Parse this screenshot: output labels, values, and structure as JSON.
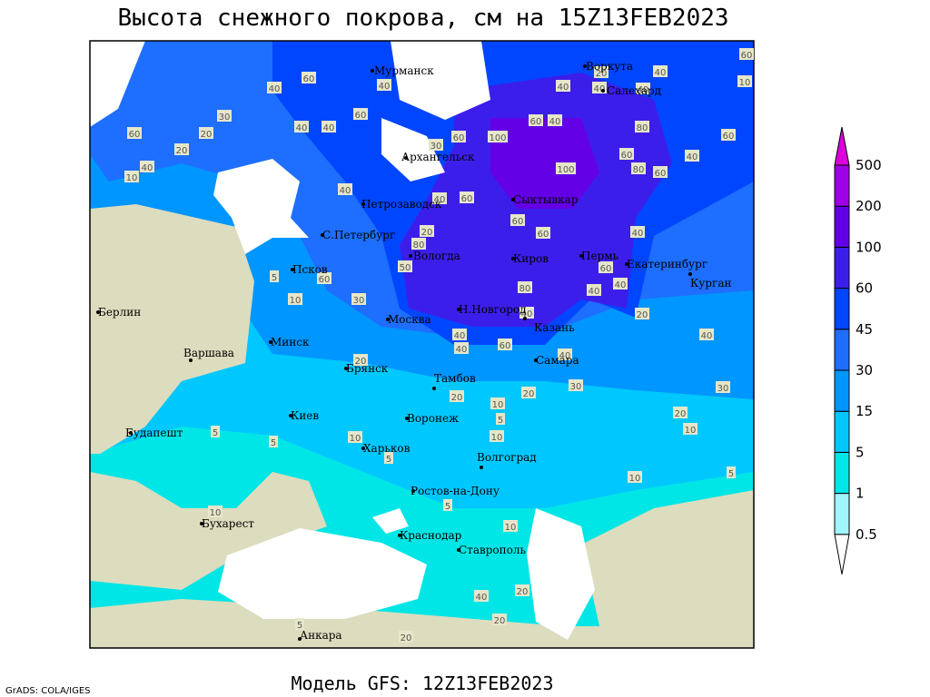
{
  "title": "Высота снежного покрова, см на 15Z13FEB2023",
  "footer": "Модель GFS: 12Z13FEB2023",
  "credit": "GrADS: COLA/IGES",
  "legend": {
    "levels": [
      0.5,
      1,
      5,
      15,
      30,
      45,
      60,
      100,
      200,
      500
    ],
    "colors": [
      "#ffffff",
      "#a0f5ff",
      "#00e6e6",
      "#00c8ff",
      "#0096ff",
      "#1e6eff",
      "#0046ff",
      "#3c1eeb",
      "#6400e6",
      "#a000e6",
      "#dc00dc"
    ]
  },
  "cities": [
    "Мурманск",
    "Воркута",
    "Салехард",
    "Архангельск",
    "Петрозаводск",
    "С.Петербург",
    "Сыктывкар",
    "Вологда",
    "Киров",
    "Пермь",
    "Екатеринбург",
    "Курган",
    "Псков",
    "Москва",
    "Н.Новгород",
    "Казань",
    "Минск",
    "Берлин",
    "Варшава",
    "Брянск",
    "Тамбов",
    "Самара",
    "Киев",
    "Воронеж",
    "Будапешт",
    "Харьков",
    "Волгоград",
    "Ростов-на-Дону",
    "Бухарест",
    "Краснодар",
    "Ставрополь",
    "Анкара"
  ],
  "contour_labels": [
    60,
    40,
    40,
    40,
    40,
    60,
    30,
    20,
    60,
    40,
    10,
    20,
    30,
    60,
    100,
    60,
    40,
    40,
    40,
    20,
    40,
    40,
    60,
    10,
    80,
    60,
    40,
    60,
    80,
    60,
    100,
    40,
    40,
    60,
    20,
    80,
    60,
    60,
    40,
    50,
    60,
    60,
    5,
    10,
    30,
    40,
    40,
    20,
    80,
    40,
    40,
    40,
    60,
    40,
    20,
    40,
    30,
    30,
    20,
    20,
    10,
    5,
    20,
    10,
    5,
    5,
    10,
    10,
    5,
    10,
    5,
    5,
    10,
    10,
    40,
    20,
    20,
    5,
    20
  ]
}
